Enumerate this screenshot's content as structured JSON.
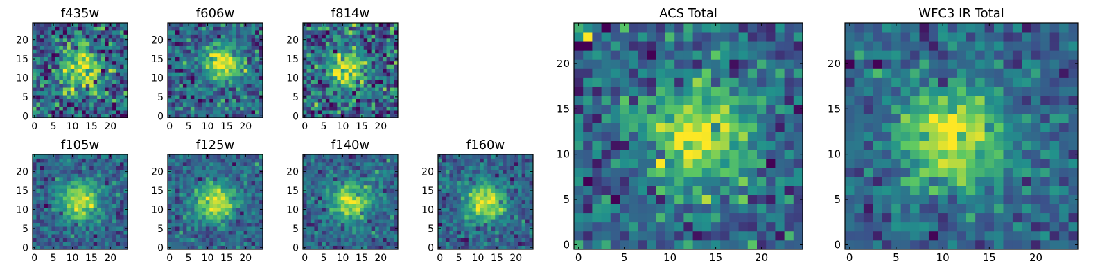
{
  "chart_data": [
    {
      "type": "heatmap",
      "title": "f435w",
      "size": 25,
      "xticks": [
        "0",
        "5",
        "10",
        "15",
        "20"
      ],
      "yticks": [
        "0",
        "5",
        "10",
        "15",
        "20"
      ],
      "xlim": [
        0,
        25
      ],
      "ylim": [
        0,
        25
      ],
      "peak": {
        "x": 12.5,
        "y": 12.5
      },
      "noise": "high"
    },
    {
      "type": "heatmap",
      "title": "f606w",
      "size": 25,
      "xticks": [
        "0",
        "5",
        "10",
        "15",
        "20"
      ],
      "yticks": [
        "0",
        "5",
        "10",
        "15",
        "20"
      ],
      "xlim": [
        0,
        25
      ],
      "ylim": [
        0,
        25
      ],
      "peak": {
        "x": 14,
        "y": 14
      },
      "noise": "medium"
    },
    {
      "type": "heatmap",
      "title": "f814w",
      "size": 25,
      "xticks": [
        "0",
        "5",
        "10",
        "15",
        "20"
      ],
      "yticks": [
        "0",
        "5",
        "10",
        "15",
        "20"
      ],
      "xlim": [
        0,
        25
      ],
      "ylim": [
        0,
        25
      ],
      "peak": {
        "x": 11,
        "y": 12
      },
      "noise": "high"
    },
    {
      "type": "heatmap",
      "title": "f105w",
      "size": 25,
      "xticks": [
        "0",
        "5",
        "10",
        "15",
        "20"
      ],
      "yticks": [
        "0",
        "5",
        "10",
        "15",
        "20"
      ],
      "xlim": [
        0,
        25
      ],
      "ylim": [
        0,
        25
      ],
      "peak": {
        "x": 12,
        "y": 12
      },
      "noise": "low"
    },
    {
      "type": "heatmap",
      "title": "f125w",
      "size": 25,
      "xticks": [
        "0",
        "5",
        "10",
        "15",
        "20"
      ],
      "yticks": [
        "0",
        "5",
        "10",
        "15",
        "20"
      ],
      "xlim": [
        0,
        25
      ],
      "ylim": [
        0,
        25
      ],
      "peak": {
        "x": 12,
        "y": 12
      },
      "noise": "low"
    },
    {
      "type": "heatmap",
      "title": "f140w",
      "size": 25,
      "xticks": [
        "0",
        "5",
        "10",
        "15",
        "20"
      ],
      "yticks": [
        "0",
        "5",
        "10",
        "15",
        "20"
      ],
      "xlim": [
        0,
        25
      ],
      "ylim": [
        0,
        25
      ],
      "peak": {
        "x": 12,
        "y": 12
      },
      "noise": "low"
    },
    {
      "type": "heatmap",
      "title": "f160w",
      "size": 25,
      "xticks": [
        "0",
        "5",
        "10",
        "15",
        "20"
      ],
      "yticks": [
        "0",
        "5",
        "10",
        "15",
        "20"
      ],
      "xlim": [
        0,
        25
      ],
      "ylim": [
        0,
        25
      ],
      "peak": {
        "x": 12,
        "y": 12
      },
      "noise": "low"
    },
    {
      "type": "heatmap",
      "title": "ACS Total",
      "size": 25,
      "xticks": [
        "0",
        "5",
        "10",
        "15",
        "20"
      ],
      "yticks": [
        "0",
        "5",
        "10",
        "15",
        "20"
      ],
      "xlim": [
        0,
        25
      ],
      "ylim": [
        0,
        25
      ],
      "peak": {
        "x": 13,
        "y": 12
      },
      "noise": "medium"
    },
    {
      "type": "heatmap",
      "title": "WFC3 IR Total",
      "size": 25,
      "xticks": [
        "0",
        "5",
        "10",
        "15",
        "20"
      ],
      "yticks": [
        "0",
        "5",
        "10",
        "15",
        "20"
      ],
      "xlim": [
        0,
        25
      ],
      "ylim": [
        0,
        25
      ],
      "peak": {
        "x": 11,
        "y": 12
      },
      "noise": "low"
    }
  ],
  "colormap": [
    "#440154",
    "#3b528b",
    "#21918c",
    "#5ec962",
    "#fde725"
  ]
}
